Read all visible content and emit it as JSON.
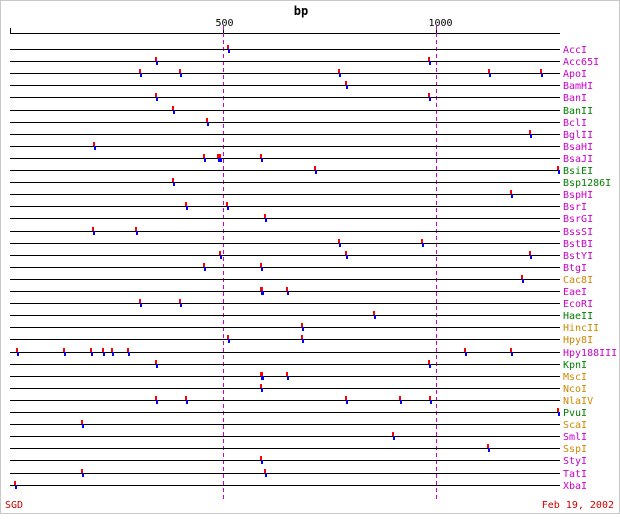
{
  "title": "bp",
  "ruler": {
    "start": 1,
    "end": 1290,
    "ticks": [
      500,
      1000
    ]
  },
  "footer": {
    "left": "SGD",
    "right": "Feb 19, 2002"
  },
  "colors": {
    "background": "#ffffff",
    "border": "#c8c8c8",
    "line": "#000000",
    "guide": "#cc00cc",
    "cut_top": "#ff0000",
    "cut_bottom": "#0000ff",
    "purple": "#cc00cc",
    "green": "#008000",
    "orange": "#cc8800"
  },
  "enzymes": [
    {
      "name": "AccI",
      "color": "purple",
      "sites": [
        511
      ]
    },
    {
      "name": "Acc65I",
      "color": "purple",
      "sites": [
        342,
        983
      ]
    },
    {
      "name": "ApoI",
      "color": "purple",
      "sites": [
        305,
        400,
        773,
        1123,
        1245
      ]
    },
    {
      "name": "BamHI",
      "color": "purple",
      "sites": [
        789
      ]
    },
    {
      "name": "BanI",
      "color": "purple",
      "sites": [
        342,
        983
      ]
    },
    {
      "name": "BanII",
      "color": "green",
      "sites": [
        382
      ]
    },
    {
      "name": "BclI",
      "color": "purple",
      "sites": [
        462
      ]
    },
    {
      "name": "BglII",
      "color": "purple",
      "sites": [
        1219
      ]
    },
    {
      "name": "BsaHI",
      "color": "purple",
      "sites": [
        199
      ]
    },
    {
      "name": "BsaJI",
      "color": "purple",
      "sites": [
        455,
        488,
        492,
        590
      ]
    },
    {
      "name": "BsiEI",
      "color": "green",
      "sites": [
        716,
        1286
      ]
    },
    {
      "name": "Bsp1286I",
      "color": "green",
      "sites": [
        382
      ]
    },
    {
      "name": "BspHI",
      "color": "purple",
      "sites": [
        1175
      ]
    },
    {
      "name": "BsrI",
      "color": "purple",
      "sites": [
        413,
        510
      ]
    },
    {
      "name": "BsrGI",
      "color": "purple",
      "sites": [
        599
      ]
    },
    {
      "name": "BssSI",
      "color": "purple",
      "sites": [
        195,
        296
      ]
    },
    {
      "name": "BstBI",
      "color": "purple",
      "sites": [
        773,
        966
      ]
    },
    {
      "name": "BstYI",
      "color": "purple",
      "sites": [
        494,
        789,
        1219
      ]
    },
    {
      "name": "BtgI",
      "color": "purple",
      "sites": [
        455,
        590
      ]
    },
    {
      "name": "Cac8I",
      "color": "orange",
      "sites": [
        1200
      ]
    },
    {
      "name": "EaeI",
      "color": "purple",
      "sites": [
        589,
        592,
        651
      ]
    },
    {
      "name": "EcoRI",
      "color": "purple",
      "sites": [
        305,
        400
      ]
    },
    {
      "name": "HaeII",
      "color": "green",
      "sites": [
        855
      ]
    },
    {
      "name": "HincII",
      "color": "orange",
      "sites": [
        686
      ]
    },
    {
      "name": "Hpy8I",
      "color": "orange",
      "sites": [
        511,
        686
      ]
    },
    {
      "name": "Hpy188III",
      "color": "purple",
      "sites": [
        17,
        127,
        192,
        220,
        240,
        278,
        1068,
        1175
      ]
    },
    {
      "name": "KpnI",
      "color": "green",
      "sites": [
        342,
        983
      ]
    },
    {
      "name": "MscI",
      "color": "orange",
      "sites": [
        589,
        592,
        651
      ]
    },
    {
      "name": "NcoI",
      "color": "orange",
      "sites": [
        590
      ]
    },
    {
      "name": "NlaIV",
      "color": "orange",
      "sites": [
        342,
        413,
        789,
        916,
        986
      ]
    },
    {
      "name": "PvuI",
      "color": "green",
      "sites": [
        1286
      ]
    },
    {
      "name": "ScaI",
      "color": "orange",
      "sites": [
        170
      ]
    },
    {
      "name": "SmlI",
      "color": "purple",
      "sites": [
        899
      ]
    },
    {
      "name": "SspI",
      "color": "orange",
      "sites": [
        1121
      ]
    },
    {
      "name": "StyI",
      "color": "purple",
      "sites": [
        590
      ]
    },
    {
      "name": "TatI",
      "color": "purple",
      "sites": [
        170,
        599
      ]
    },
    {
      "name": "XbaI",
      "color": "purple",
      "sites": [
        12
      ]
    }
  ]
}
